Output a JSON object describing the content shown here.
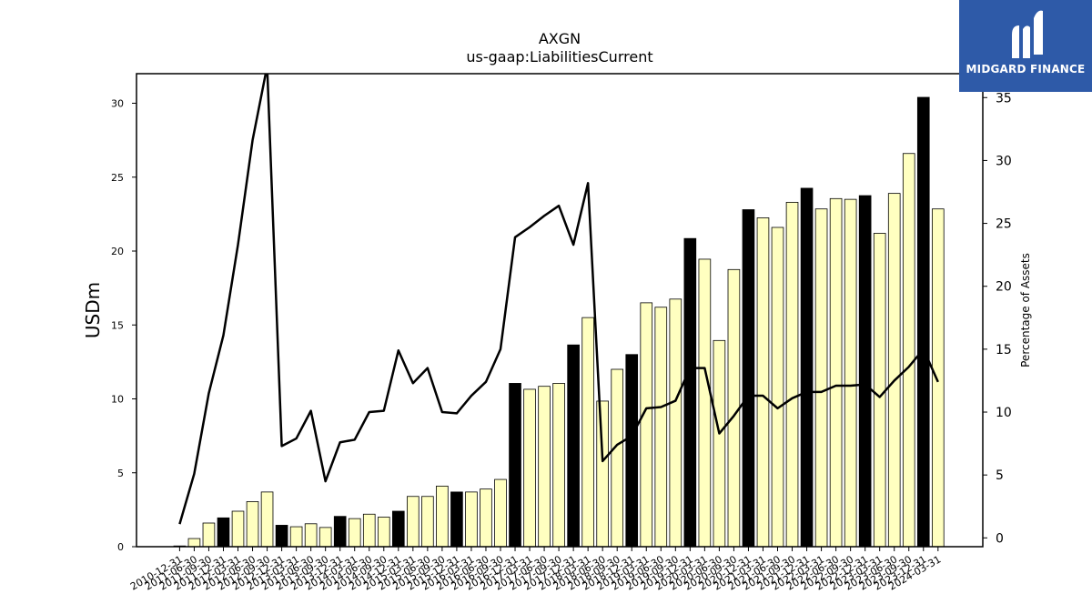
{
  "brand": {
    "name": "MIDGARD FINANCE",
    "bg_color": "#2e5aa8"
  },
  "chart_data": {
    "type": "bar",
    "title": "AXGN",
    "subtitle": "us-gaap:LiabilitiesCurrent",
    "ylabel": "USDm",
    "ylabel_right": "Percentage of Assets",
    "ylim": [
      0,
      32
    ],
    "ylim_right": [
      -0.7,
      36.9
    ],
    "yticks": [
      0,
      5,
      10,
      15,
      20,
      25,
      30
    ],
    "yticks_right": [
      0,
      5,
      10,
      15,
      20,
      25,
      30,
      35
    ],
    "colors": {
      "annual_bar": "#000000",
      "quarter_bar": "#ffffc0",
      "line": "#000000"
    },
    "categories": [
      "2010-12-31",
      "2011-06-30",
      "2011-09-30",
      "2011-12-31",
      "2012-03-31",
      "2012-06-30",
      "2012-09-30",
      "2012-12-31",
      "2013-03-31",
      "2013-06-30",
      "2013-09-30",
      "2013-12-31",
      "2014-03-31",
      "2014-06-30",
      "2014-09-30",
      "2014-12-31",
      "2015-03-31",
      "2015-06-30",
      "2015-09-30",
      "2015-12-31",
      "2016-03-31",
      "2016-06-30",
      "2016-09-30",
      "2016-12-31",
      "2017-03-31",
      "2017-06-30",
      "2017-09-30",
      "2017-12-31",
      "2018-03-31",
      "2018-06-30",
      "2018-09-30",
      "2018-12-31",
      "2019-03-31",
      "2019-06-30",
      "2019-09-30",
      "2019-12-31",
      "2020-03-31",
      "2020-06-30",
      "2020-09-30",
      "2020-12-31",
      "2021-03-31",
      "2021-06-30",
      "2021-09-30",
      "2021-12-31",
      "2022-03-31",
      "2022-06-30",
      "2022-09-30",
      "2022-12-31",
      "2023-03-31",
      "2023-06-30",
      "2023-09-30",
      "2023-12-31",
      "2024-03-31"
    ],
    "series": [
      {
        "kind": "bar",
        "axis": "left",
        "values": [
          0.05,
          0.55,
          1.6,
          1.95,
          2.4,
          3.05,
          3.7,
          1.45,
          1.35,
          1.55,
          1.3,
          2.05,
          1.9,
          2.2,
          2.0,
          2.4,
          3.4,
          3.4,
          4.1,
          3.7,
          3.7,
          3.9,
          4.55,
          11.05,
          10.65,
          10.85,
          11.05,
          13.65,
          15.5,
          9.85,
          12.0,
          13.0,
          16.5,
          16.2,
          16.75,
          20.85,
          19.45,
          13.95,
          18.75,
          22.8,
          22.25,
          21.6,
          23.3,
          24.25,
          22.85,
          23.55,
          23.5,
          23.75,
          21.2,
          23.9,
          26.6,
          30.4,
          22.85
        ],
        "annual": [
          false,
          false,
          false,
          true,
          false,
          false,
          false,
          true,
          false,
          false,
          false,
          true,
          false,
          false,
          false,
          true,
          false,
          false,
          false,
          true,
          false,
          false,
          false,
          true,
          false,
          false,
          false,
          true,
          false,
          false,
          false,
          true,
          false,
          false,
          false,
          true,
          false,
          false,
          false,
          true,
          false,
          false,
          false,
          true,
          false,
          false,
          false,
          true,
          false,
          false,
          false,
          true,
          false
        ]
      },
      {
        "kind": "line",
        "axis": "right",
        "values": [
          1.1,
          5.1,
          11.5,
          16.1,
          23.3,
          31.6,
          37.5,
          7.3,
          7.9,
          10.1,
          4.5,
          7.6,
          7.8,
          10.0,
          10.1,
          14.9,
          12.3,
          13.5,
          10.0,
          9.9,
          11.3,
          12.4,
          15.0,
          23.9,
          24.7,
          25.6,
          26.4,
          23.3,
          28.2,
          6.1,
          7.4,
          8.1,
          10.3,
          10.4,
          10.9,
          13.5,
          13.5,
          8.3,
          9.7,
          11.3,
          11.3,
          10.3,
          11.1,
          11.6,
          11.6,
          12.1,
          12.1,
          12.2,
          11.2,
          12.5,
          13.6,
          15.0,
          12.4
        ]
      }
    ]
  }
}
